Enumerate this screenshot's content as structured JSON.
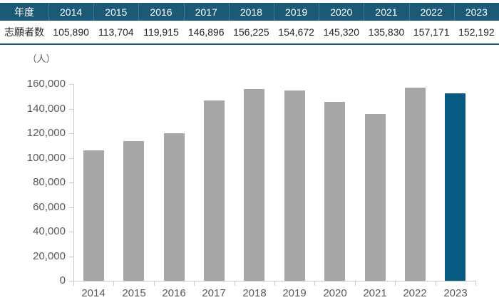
{
  "table": {
    "year_label": "年度",
    "applicants_label": "志願者数",
    "years": [
      "2014",
      "2015",
      "2016",
      "2017",
      "2018",
      "2019",
      "2020",
      "2021",
      "2022",
      "2023"
    ],
    "applicants": [
      "105,890",
      "113,704",
      "119,915",
      "146,896",
      "156,225",
      "154,672",
      "145,320",
      "135,830",
      "157,171",
      "152,192"
    ]
  },
  "chart_data": {
    "type": "bar",
    "title": "",
    "unit_label": "（人）",
    "xlabel": "",
    "ylabel": "",
    "categories": [
      "2014",
      "2015",
      "2016",
      "2017",
      "2018",
      "2019",
      "2020",
      "2021",
      "2022",
      "2023"
    ],
    "values": [
      105890,
      113704,
      119915,
      146896,
      156225,
      154672,
      145320,
      135830,
      157171,
      152192
    ],
    "ylim": [
      0,
      160000
    ],
    "ytick_step": 20000,
    "ytick_labels": [
      "0",
      "20,000",
      "40,000",
      "60,000",
      "80,000",
      "100,000",
      "120,000",
      "140,000",
      "160,000"
    ],
    "grid": "off",
    "legend": "none",
    "highlight_index": 9,
    "bar_color": "#a6a6a6",
    "highlight_color": "#075b82"
  },
  "colors": {
    "table_header_bg": "#1b5a77",
    "table_border": "#1b5a77",
    "table_text": "#262626",
    "axis": "#c9c9c9",
    "axis_text": "#595959"
  }
}
